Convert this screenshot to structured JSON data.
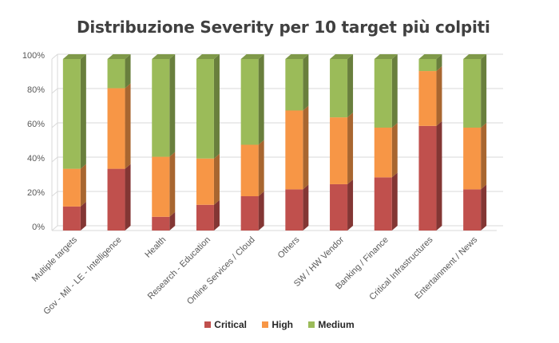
{
  "chart_data": {
    "type": "bar",
    "stacked": true,
    "percent": true,
    "three_d": true,
    "title": "Distribuzione Severity per 10 target più colpiti",
    "categories": [
      "Multiple targets",
      "Gov - Mil - LE - Intelligence",
      "Health",
      "Research - Education",
      "Online Services / Cloud",
      "Others",
      "SW / HW Vendor",
      "Banking / Finance",
      "Critical Infrastructures",
      "Entertainment / News"
    ],
    "series": [
      {
        "name": "Critical",
        "color": "#c0504d",
        "values": [
          14,
          36,
          8,
          15,
          20,
          24,
          27,
          31,
          61,
          24
        ]
      },
      {
        "name": "High",
        "color": "#f79646",
        "values": [
          22,
          47,
          35,
          27,
          30,
          46,
          39,
          29,
          32,
          36
        ]
      },
      {
        "name": "Medium",
        "color": "#9bbb59",
        "values": [
          64,
          17,
          57,
          58,
          50,
          30,
          34,
          40,
          7,
          40
        ]
      }
    ],
    "ylim": [
      0,
      100
    ],
    "yticks": [
      "0%",
      "20%",
      "40%",
      "60%",
      "80%",
      "100%"
    ],
    "grid": true,
    "legend_position": "bottom"
  }
}
